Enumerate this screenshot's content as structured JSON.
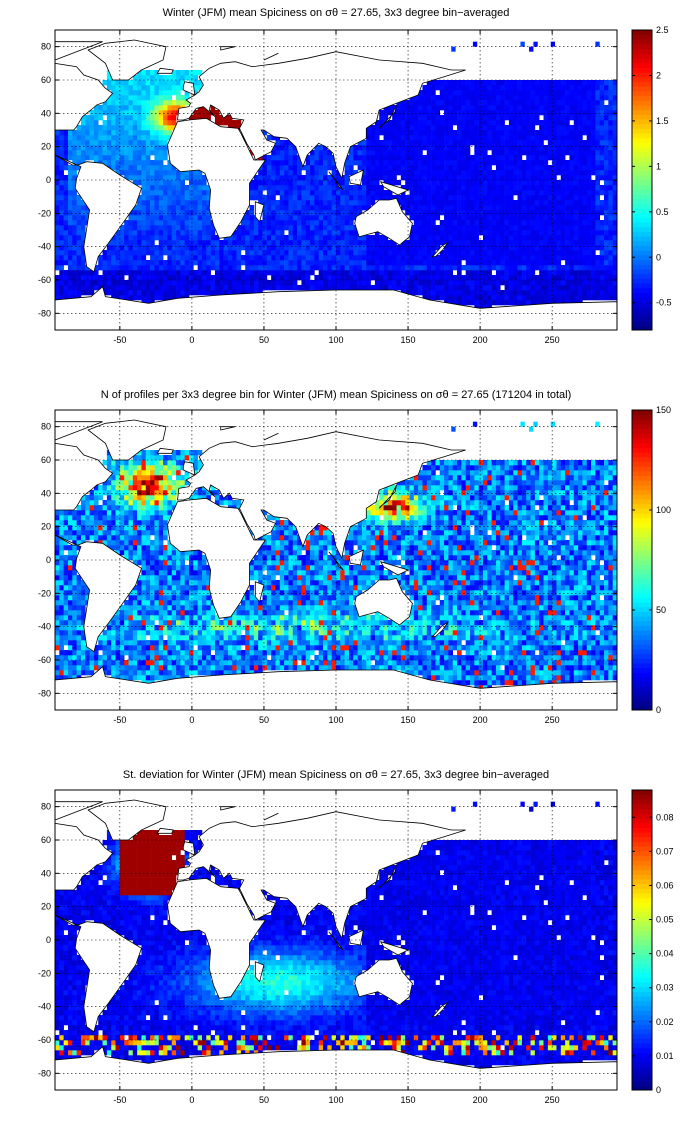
{
  "chart_data": [
    {
      "type": "heatmap",
      "title": "Winter (JFM) mean Spiciness on σθ = 27.65, 3x3 degree bin−averaged",
      "x_ticks": [
        -50,
        0,
        50,
        100,
        150,
        200,
        250
      ],
      "y_ticks": [
        80,
        60,
        40,
        20,
        0,
        -20,
        -40,
        -60,
        -80
      ],
      "xlim": [
        -95,
        295
      ],
      "ylim": [
        -90,
        90
      ],
      "colorbar_ticks": [
        2.5,
        2,
        1.5,
        1,
        0.5,
        0,
        -0.5
      ],
      "colorbar_range": [
        -0.8,
        2.5
      ],
      "grid": "on",
      "field": "spiciness"
    },
    {
      "type": "heatmap",
      "title": "N of profiles per 3x3 degree bin for Winter (JFM) mean Spiciness on σθ = 27.65 (171204 in total)",
      "x_ticks": [
        -50,
        0,
        50,
        100,
        150,
        200,
        250
      ],
      "y_ticks": [
        80,
        60,
        40,
        20,
        0,
        -20,
        -40,
        -60,
        -80
      ],
      "xlim": [
        -95,
        295
      ],
      "ylim": [
        -90,
        90
      ],
      "colorbar_ticks": [
        150,
        100,
        50,
        0
      ],
      "colorbar_range": [
        0,
        150
      ],
      "grid": "on",
      "field": "count"
    },
    {
      "type": "heatmap",
      "title": "St. deviation for Winter (JFM) mean Spiciness on σθ = 27.65, 3x3 degree bin−averaged",
      "x_ticks": [
        -50,
        0,
        50,
        100,
        150,
        200,
        250
      ],
      "y_ticks": [
        80,
        60,
        40,
        20,
        0,
        -20,
        -40,
        -60,
        -80
      ],
      "xlim": [
        -95,
        295
      ],
      "ylim": [
        -90,
        90
      ],
      "colorbar_ticks": [
        0.08,
        0.07,
        0.06,
        0.05,
        0.04,
        0.03,
        0.02,
        0.01,
        0
      ],
      "colorbar_range": [
        0,
        0.088
      ],
      "grid": "on",
      "field": "std"
    }
  ]
}
